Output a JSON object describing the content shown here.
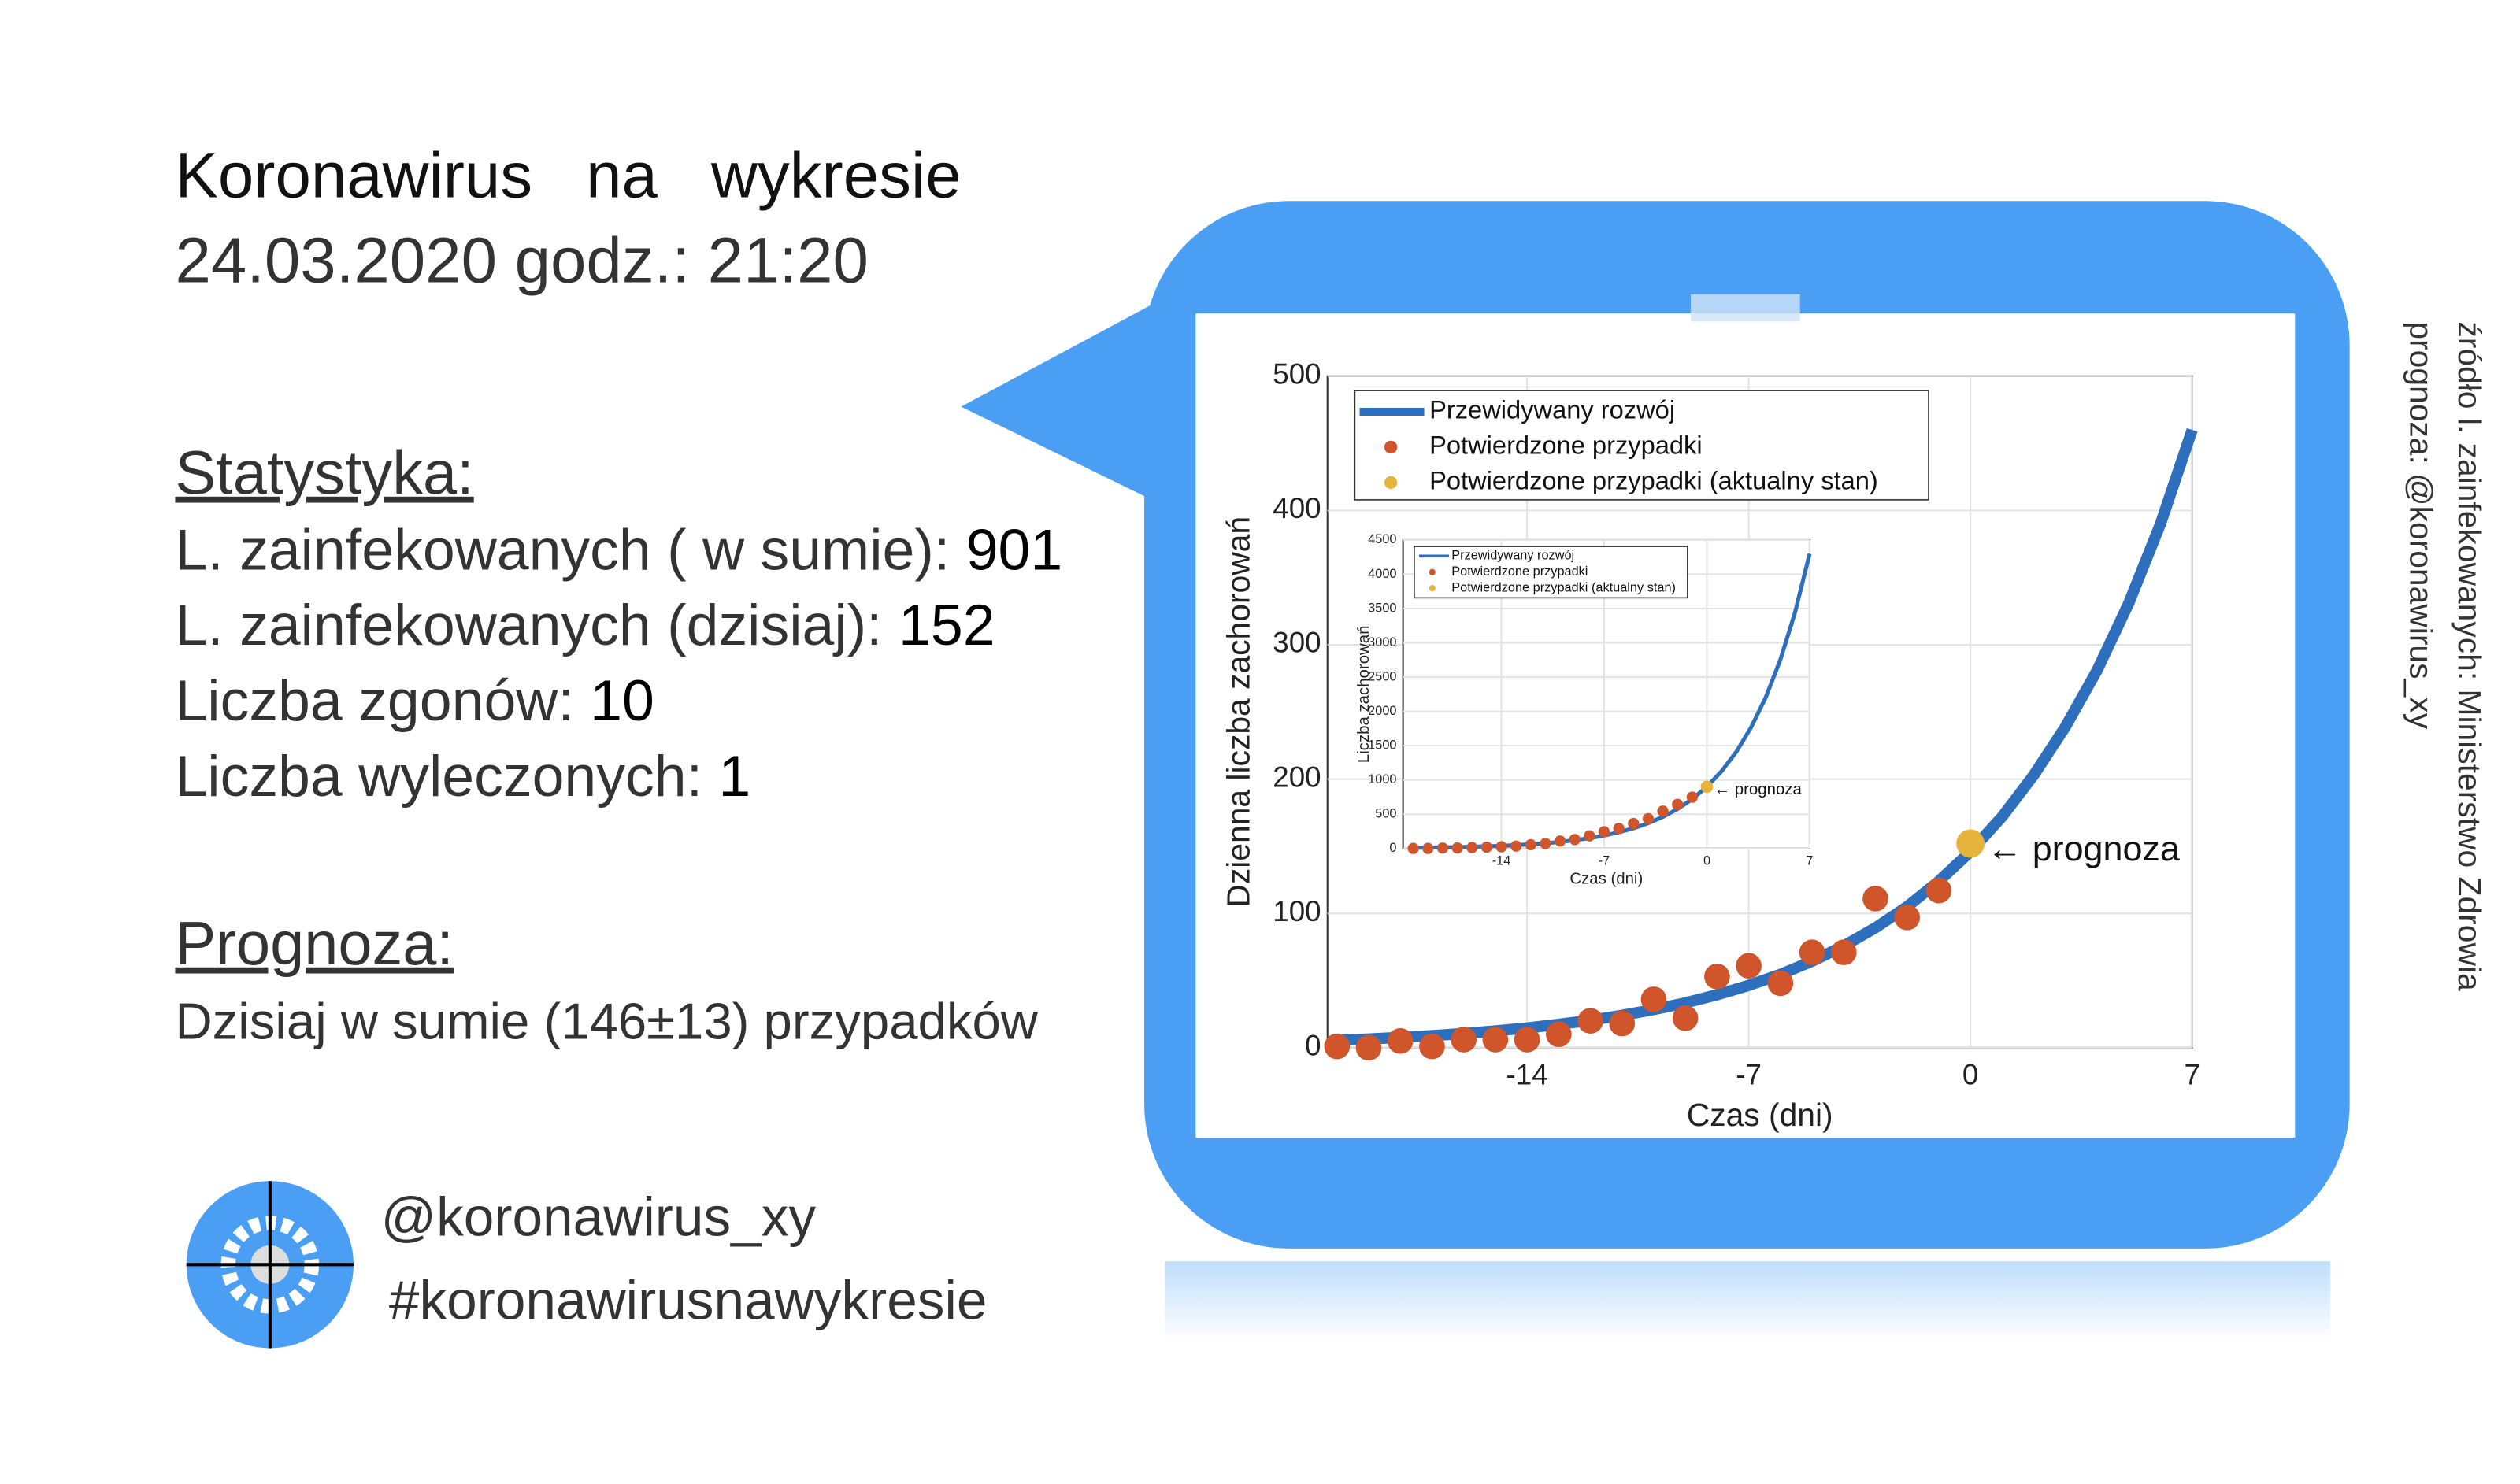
{
  "header": {
    "title": "Koronawirus   na   wykresie",
    "date": "24.03.2020 godz.: 21:20"
  },
  "stats": {
    "heading": "Statystyka:",
    "items": [
      {
        "label": "L. zainfekowanych ( w sumie): ",
        "value": 901
      },
      {
        "label": "L. zainfekowanych (dzisiaj): ",
        "value": 152
      },
      {
        "label": "Liczba zgonów: ",
        "value": 10
      },
      {
        "label": "Liczba wyleczonych: ",
        "value": 1
      }
    ]
  },
  "forecast": {
    "heading": "Prognoza:",
    "text": "Dzisiaj w sumie (146±13) przypadków"
  },
  "footer": {
    "handle": "@koronawirus_xy",
    "hashtag": "#koronawirusnawykresie"
  },
  "side": {
    "source": "źródło l. zainfekowanych: Ministerstwo Zdrowia",
    "author": "prognoza: @koronawirus_xy"
  },
  "chart_data": [
    {
      "type": "line",
      "xlabel": "Czas (dni)",
      "ylabel": "Dzienna liczba zachorowań",
      "xlim": [
        -20.3,
        7
      ],
      "ylim": [
        0,
        500
      ],
      "xticks": [
        -14,
        -7,
        0,
        7
      ],
      "yticks": [
        0,
        100,
        200,
        300,
        400,
        500
      ],
      "grid": true,
      "legend": "upper left",
      "annotation": "← prognoza",
      "series": [
        {
          "name": "Przewidywany rozwój",
          "type": "line",
          "color": "#2e6fbd",
          "x": [
            -20,
            -19,
            -18,
            -17,
            -16,
            -15,
            -14,
            -13,
            -12,
            -11,
            -10,
            -9,
            -8,
            -7,
            -6,
            -5,
            -4,
            -3,
            -2,
            -1,
            0,
            1,
            2,
            3,
            4,
            5,
            6,
            7
          ],
          "values": [
            5.5,
            6.5,
            7.7,
            9,
            10.6,
            12.5,
            14.7,
            17.4,
            20.4,
            24.1,
            28.4,
            33.4,
            39.4,
            46.4,
            54.6,
            64.4,
            75.8,
            89.3,
            105,
            124,
            146,
            172,
            203,
            239,
            281,
            331,
            390,
            460
          ]
        },
        {
          "name": "Potwierdzone przypadki",
          "type": "scatter",
          "color": "#d1552b",
          "x": [
            -20,
            -19,
            -18,
            -17,
            -16,
            -15,
            -14,
            -13,
            -12,
            -11,
            -10,
            -9,
            -8,
            -7,
            -6,
            -5,
            -4,
            -3,
            -2,
            -1
          ],
          "values": [
            1,
            0,
            5,
            1,
            6,
            6,
            6,
            10,
            20,
            18,
            36,
            22,
            53,
            61,
            48,
            71,
            71,
            111,
            97,
            117
          ]
        },
        {
          "name": "Potwierdzone przypadki (aktualny stan)",
          "type": "scatter",
          "color": "#e6b43c",
          "x": [
            0
          ],
          "values": [
            152
          ]
        }
      ]
    },
    {
      "type": "line",
      "xlabel": "Czas (dni)",
      "ylabel": "Liczba zachorowań",
      "xlim": [
        -20.7,
        7
      ],
      "ylim": [
        0,
        4500
      ],
      "xticks": [
        -14,
        -7,
        0,
        7
      ],
      "yticks": [
        0,
        500,
        1000,
        1500,
        2000,
        2500,
        3000,
        3500,
        4000,
        4500
      ],
      "grid": true,
      "legend": "upper left",
      "annotation": "← prognoza",
      "series": [
        {
          "name": "Przewidywany rozwój",
          "type": "line",
          "color": "#2e6fbd",
          "x": [
            -20,
            -19,
            -18,
            -17,
            -16,
            -15,
            -14,
            -13,
            -12,
            -11,
            -10,
            -9,
            -8,
            -7,
            -6,
            -5,
            -4,
            -3,
            -2,
            -1,
            0,
            1,
            2,
            3,
            4,
            5,
            6,
            7
          ],
          "values": [
            10,
            13,
            16,
            20,
            25,
            32,
            39,
            49,
            62,
            77,
            96,
            121,
            151,
            189,
            236,
            295,
            369,
            461,
            576,
            720,
            901,
            1127,
            1409,
            1762,
            2200,
            2750,
            3440,
            4300
          ]
        },
        {
          "name": "Potwierdzone przypadki",
          "type": "scatter",
          "color": "#d1552b",
          "x": [
            -20,
            -19,
            -18,
            -17,
            -16,
            -15,
            -14,
            -13,
            -12,
            -11,
            -10,
            -9,
            -8,
            -7,
            -6,
            -5,
            -4,
            -3,
            -2,
            -1
          ],
          "values": [
            1,
            1,
            6,
            7,
            13,
            19,
            25,
            35,
            55,
            73,
            109,
            131,
            184,
            245,
            293,
            364,
            435,
            546,
            643,
            749
          ]
        },
        {
          "name": "Potwierdzone przypadki (aktualny stan)",
          "type": "scatter",
          "color": "#e6b43c",
          "x": [
            0
          ],
          "values": [
            901
          ]
        }
      ]
    }
  ]
}
